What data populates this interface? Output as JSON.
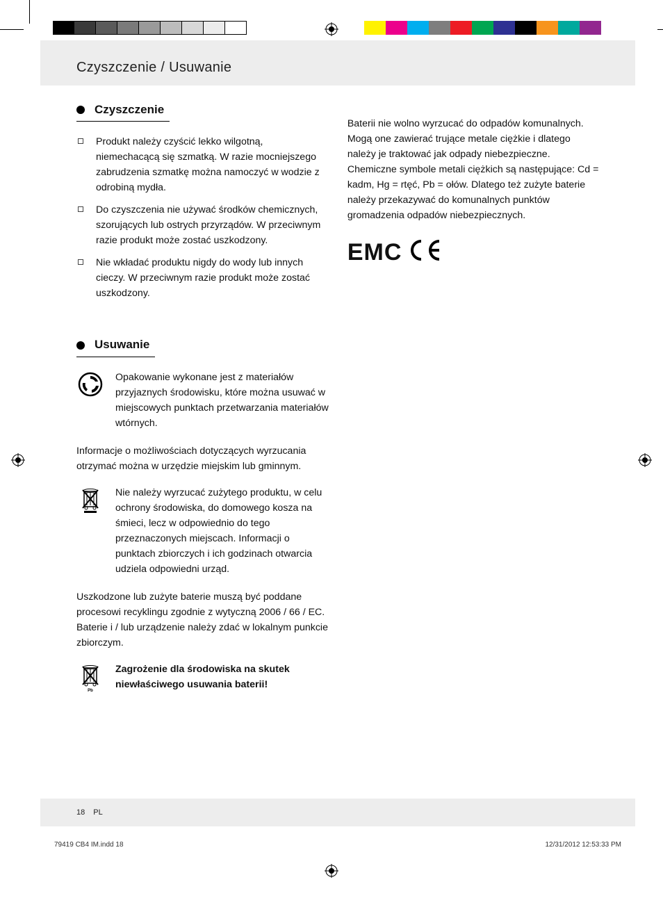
{
  "colorbar_left": [
    "#000000",
    "#3a3a3a",
    "#5a5a5a",
    "#7a7a7a",
    "#9a9a9a",
    "#bcbcbc",
    "#d8d8d8",
    "#ececec",
    "#ffffff"
  ],
  "colorbar_right": [
    "#fff200",
    "#ec008c",
    "#00aeef",
    "#7e7e7e",
    "#ed1c24",
    "#00a651",
    "#2e3192",
    "#000000",
    "#f7941d",
    "#00a99d",
    "#92278f",
    "#ffffff"
  ],
  "header": {
    "breadcrumb": "Czyszczenie / Usuwanie"
  },
  "section1": {
    "title": "Czyszczenie",
    "items": [
      "Produkt należy czyścić lekko wilgotną, niemechacącą się szmatką. W razie mocniejszego zabrudzenia szmatkę można namoczyć w wodzie z odrobiną mydła.",
      "Do czyszczenia nie używać środków chemicznych, szorujących lub ostrych przyrządów. W przeciwnym razie produkt może zostać uszkodzony.",
      "Nie wkładać produktu nigdy do wody lub innych cieczy. W przeciwnym razie produkt może zostać uszkodzony."
    ]
  },
  "section2": {
    "title": "Usuwanie",
    "recycle_text": "Opakowanie wykonane jest z materiałów przyjaznych środowisku, które można usuwać w miejscowych punktach przetwarzania materiałów wtórnych.",
    "para1": "Informacje o możliwościach dotyczących wyrzucania otrzymać można w urzędzie miejskim lub gminnym.",
    "weee_text": "Nie należy wyrzucać zużytego produktu, w celu ochrony środowiska, do domowego kosza na śmieci, lecz w odpowiednio do tego przeznaczonych miejscach. Informacji o punktach zbiorczych i ich godzinach otwarcia udziela odpowiedni urząd.",
    "para2": "Uszkodzone lub zużyte baterie muszą być poddane procesowi recyklingu zgodnie z wytyczną 2006 / 66 / EC. Baterie i / lub urządzenie należy zdać w lokalnym punkcie zbiorczym.",
    "battery_warning": "Zagrożenie dla środowiska na skutek niewłaściwego usuwania baterii!"
  },
  "right_col": {
    "text": "Baterii nie wolno wyrzucać do odpadów komunalnych. Mogą one zawierać trujące metale ciężkie i dlatego należy je traktować jak odpady niebezpieczne. Chemiczne symbole metali ciężkich są następujące: Cd = kadm, Hg = rtęć, Pb = ołów. Dlatego też zużyte baterie należy przekazywać do komunalnych punktów gromadzenia odpadów niebezpiecznych.",
    "emc": "EMC"
  },
  "footer": {
    "page_num": "18",
    "lang": "PL"
  },
  "slug": {
    "file": "79419 CB4 IM.indd   18",
    "stamp": "12/31/2012   12:53:33 PM"
  }
}
